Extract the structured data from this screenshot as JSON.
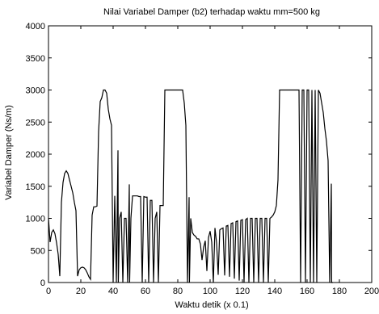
{
  "chart_data": {
    "type": "line",
    "title": "Nilai Variabel Damper (b2) terhadap waktu mm=500 kg",
    "xlabel": "Waktu detik (x 0.1)",
    "ylabel": "Variabel Damper (Ns/m)",
    "xlim": [
      0,
      200
    ],
    "ylim": [
      0,
      4000
    ],
    "xticks": [
      0,
      20,
      40,
      60,
      80,
      100,
      120,
      140,
      160,
      180,
      200
    ],
    "yticks": [
      0,
      500,
      1000,
      1500,
      2000,
      2500,
      3000,
      3500,
      4000
    ],
    "grid": false,
    "series": [
      {
        "color": "#000000",
        "points": [
          [
            0,
            1000
          ],
          [
            1,
            630
          ],
          [
            2,
            780
          ],
          [
            3,
            820
          ],
          [
            4,
            760
          ],
          [
            5,
            620
          ],
          [
            6,
            440
          ],
          [
            7,
            100
          ],
          [
            8,
            1250
          ],
          [
            9,
            1560
          ],
          [
            10,
            1700
          ],
          [
            11,
            1740
          ],
          [
            12,
            1700
          ],
          [
            13,
            1600
          ],
          [
            14,
            1500
          ],
          [
            15,
            1400
          ],
          [
            16,
            1250
          ],
          [
            17,
            1120
          ],
          [
            18,
            100
          ],
          [
            19,
            200
          ],
          [
            20,
            230
          ],
          [
            21,
            240
          ],
          [
            22,
            230
          ],
          [
            23,
            200
          ],
          [
            24,
            150
          ],
          [
            25,
            90
          ],
          [
            26,
            50
          ],
          [
            27,
            1050
          ],
          [
            28,
            1180
          ],
          [
            29,
            1180
          ],
          [
            30,
            1190
          ],
          [
            31,
            2350
          ],
          [
            32,
            2820
          ],
          [
            33,
            2880
          ],
          [
            34,
            3000
          ],
          [
            35,
            3000
          ],
          [
            36,
            2950
          ],
          [
            37,
            2700
          ],
          [
            38,
            2550
          ],
          [
            39,
            2450
          ],
          [
            40,
            0
          ],
          [
            41,
            1350
          ],
          [
            42,
            0
          ],
          [
            43,
            2060
          ],
          [
            43.2,
            0
          ],
          [
            44,
            1000
          ],
          [
            45,
            1100
          ],
          [
            46,
            0
          ],
          [
            47,
            1000
          ],
          [
            48,
            1000
          ],
          [
            49,
            0
          ],
          [
            50,
            1530
          ],
          [
            50.2,
            0
          ],
          [
            51,
            1000
          ],
          [
            52,
            1350
          ],
          [
            53,
            1350
          ],
          [
            54,
            1350
          ],
          [
            55,
            1350
          ],
          [
            56,
            1340
          ],
          [
            57,
            1340
          ],
          [
            58,
            0
          ],
          [
            59,
            1340
          ],
          [
            60,
            1330
          ],
          [
            61,
            1330
          ],
          [
            62,
            0
          ],
          [
            63,
            1280
          ],
          [
            64,
            1280
          ],
          [
            65,
            0
          ],
          [
            66,
            1000
          ],
          [
            67,
            1100
          ],
          [
            68,
            0
          ],
          [
            69,
            1200
          ],
          [
            70,
            1200
          ],
          [
            71,
            1200
          ],
          [
            72,
            3000
          ],
          [
            74,
            3000
          ],
          [
            76,
            3000
          ],
          [
            78,
            3000
          ],
          [
            80,
            3000
          ],
          [
            82,
            3000
          ],
          [
            83,
            3000
          ],
          [
            84,
            2800
          ],
          [
            85,
            2450
          ],
          [
            86,
            0
          ],
          [
            87,
            1330
          ],
          [
            87.2,
            0
          ],
          [
            88,
            1000
          ],
          [
            89,
            780
          ],
          [
            90,
            740
          ],
          [
            91,
            720
          ],
          [
            92,
            680
          ],
          [
            93,
            680
          ],
          [
            94,
            600
          ],
          [
            95,
            350
          ],
          [
            96,
            550
          ],
          [
            97,
            650
          ],
          [
            98,
            180
          ],
          [
            99,
            700
          ],
          [
            100,
            800
          ],
          [
            101,
            630
          ],
          [
            102,
            0
          ],
          [
            103,
            850
          ],
          [
            104,
            620
          ],
          [
            105,
            120
          ],
          [
            106,
            820
          ],
          [
            107,
            840
          ],
          [
            108,
            850
          ],
          [
            109,
            110
          ],
          [
            110,
            880
          ],
          [
            111,
            890
          ],
          [
            112,
            90
          ],
          [
            113,
            920
          ],
          [
            114,
            930
          ],
          [
            115,
            60
          ],
          [
            116,
            950
          ],
          [
            117,
            960
          ],
          [
            118,
            30
          ],
          [
            119,
            970
          ],
          [
            120,
            980
          ],
          [
            121,
            0
          ],
          [
            122,
            980
          ],
          [
            123,
            1000
          ],
          [
            124,
            0
          ],
          [
            125,
            1000
          ],
          [
            126,
            1000
          ],
          [
            127,
            0
          ],
          [
            128,
            1000
          ],
          [
            129,
            1000
          ],
          [
            130,
            0
          ],
          [
            131,
            1000
          ],
          [
            132,
            1000
          ],
          [
            133,
            0
          ],
          [
            134,
            1000
          ],
          [
            135,
            1000
          ],
          [
            136,
            0
          ],
          [
            137,
            1000
          ],
          [
            138,
            1020
          ],
          [
            139,
            1050
          ],
          [
            140,
            1100
          ],
          [
            141,
            1200
          ],
          [
            142,
            1600
          ],
          [
            143,
            3000
          ],
          [
            145,
            3000
          ],
          [
            147,
            3000
          ],
          [
            149,
            3000
          ],
          [
            151,
            3000
          ],
          [
            153,
            3000
          ],
          [
            155,
            3000
          ],
          [
            156,
            0
          ],
          [
            157,
            3000
          ],
          [
            158,
            3000
          ],
          [
            159,
            0
          ],
          [
            160,
            3000
          ],
          [
            161,
            3000
          ],
          [
            162,
            0
          ],
          [
            163,
            3000
          ],
          [
            164,
            0
          ],
          [
            165,
            3000
          ],
          [
            166,
            0
          ],
          [
            167,
            3000
          ],
          [
            168,
            2950
          ],
          [
            169,
            2800
          ],
          [
            170,
            2650
          ],
          [
            171,
            2400
          ],
          [
            172,
            2200
          ],
          [
            173,
            1900
          ],
          [
            174,
            0
          ],
          [
            175,
            1540
          ],
          [
            175.2,
            0
          ],
          [
            176,
            0
          ]
        ]
      }
    ]
  }
}
